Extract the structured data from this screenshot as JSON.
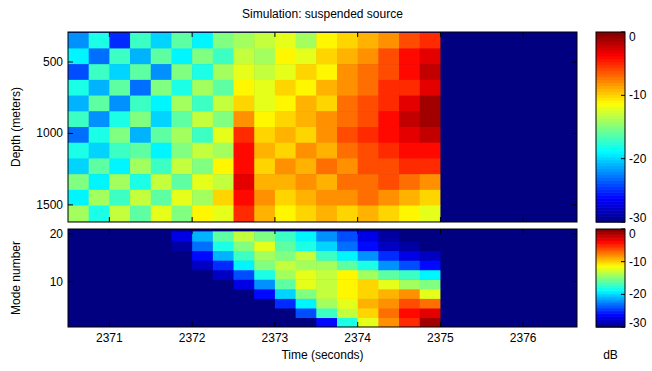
{
  "chart_data": [
    {
      "type": "heatmap",
      "title": "Simulation:  suspended source",
      "ylabel": "Depth (meters)",
      "x": [
        2370.625,
        2370.875,
        2371.125,
        2371.375,
        2371.625,
        2371.875,
        2372.125,
        2372.375,
        2372.625,
        2372.875,
        2373.125,
        2373.375,
        2373.625,
        2373.875,
        2374.125,
        2374.375,
        2374.625,
        2374.875,
        2375.125,
        2375.375,
        2375.625,
        2375.875,
        2376.125,
        2376.375
      ],
      "y": [
        350,
        460,
        570,
        680,
        790,
        900,
        1010,
        1120,
        1230,
        1340,
        1450,
        1560
      ],
      "cells": [
        [
          -22,
          -18,
          -25,
          -17,
          -20,
          -16,
          -19,
          -15,
          -14,
          -13,
          -12,
          -14,
          -11,
          -10,
          -9,
          -8,
          -6,
          -5,
          -30,
          -30,
          -30,
          -30,
          -30,
          -30
        ],
        [
          -19,
          -23,
          -17,
          -21,
          -16,
          -19,
          -15,
          -17,
          -13,
          -14,
          -11,
          -12,
          -10,
          -9,
          -8,
          -6,
          -4,
          -3,
          -30,
          -30,
          -30,
          -30,
          -30,
          -30
        ],
        [
          -24,
          -17,
          -20,
          -16,
          -22,
          -15,
          -18,
          -14,
          -12,
          -13,
          -12,
          -10,
          -11,
          -8,
          -7,
          -6,
          -4,
          -2,
          -30,
          -30,
          -30,
          -30,
          -30,
          -30
        ],
        [
          -18,
          -21,
          -16,
          -23,
          -15,
          -18,
          -14,
          -16,
          -11,
          -12,
          -10,
          -11,
          -9,
          -8,
          -7,
          -5,
          -5,
          -3,
          -30,
          -30,
          -30,
          -30,
          -30,
          -30
        ],
        [
          -21,
          -16,
          -22,
          -17,
          -19,
          -14,
          -17,
          -13,
          -10,
          -12,
          -11,
          -9,
          -10,
          -7,
          -6,
          -5,
          -3,
          -1,
          -30,
          -30,
          -30,
          -30,
          -30,
          -30
        ],
        [
          -17,
          -22,
          -18,
          -15,
          -20,
          -16,
          -13,
          -15,
          -8,
          -11,
          -10,
          -9,
          -8,
          -7,
          -6,
          -4,
          -2,
          -1,
          -30,
          -30,
          -30,
          -30,
          -30,
          -30
        ],
        [
          -23,
          -18,
          -15,
          -21,
          -16,
          -14,
          -17,
          -12,
          -5,
          -10,
          -9,
          -10,
          -8,
          -6,
          -5,
          -4,
          -3,
          -2,
          -30,
          -30,
          -30,
          -30,
          -30,
          -30
        ],
        [
          -18,
          -20,
          -17,
          -16,
          -19,
          -15,
          -13,
          -14,
          -4,
          -9,
          -10,
          -8,
          -9,
          -7,
          -6,
          -5,
          -4,
          -4,
          -30,
          -30,
          -30,
          -30,
          -30,
          -30
        ],
        [
          -20,
          -16,
          -19,
          -14,
          -17,
          -13,
          -15,
          -11,
          -4,
          -10,
          -8,
          -9,
          -7,
          -8,
          -6,
          -6,
          -5,
          -5,
          -30,
          -30,
          -30,
          -30,
          -30,
          -30
        ],
        [
          -15,
          -19,
          -14,
          -18,
          -13,
          -16,
          -12,
          -13,
          -3,
          -9,
          -9,
          -8,
          -9,
          -7,
          -7,
          -6,
          -7,
          -8,
          -30,
          -30,
          -30,
          -30,
          -30,
          -30
        ],
        [
          -19,
          -14,
          -17,
          -13,
          -16,
          -12,
          -14,
          -10,
          -4,
          -8,
          -10,
          -9,
          -8,
          -8,
          -7,
          -8,
          -9,
          -10,
          -30,
          -30,
          -30,
          -30,
          -30,
          -30
        ],
        [
          -14,
          -18,
          -13,
          -16,
          -12,
          -15,
          -11,
          -12,
          -5,
          -9,
          -11,
          -10,
          -9,
          -10,
          -9,
          -10,
          -11,
          -12,
          -30,
          -30,
          -30,
          -30,
          -30,
          -30
        ]
      ],
      "xlim": [
        2370.5,
        2376.65
      ],
      "ylim": [
        1620,
        290
      ],
      "xticks": [
        2371,
        2372,
        2373,
        2374,
        2375,
        2376
      ],
      "yticks": [
        500,
        1000,
        1500
      ],
      "tick_labels": "y",
      "grid": false,
      "colorbar": {
        "range": [
          -30,
          0
        ],
        "ticks": [
          0,
          -10,
          -20,
          -30
        ]
      }
    },
    {
      "type": "heatmap",
      "xlabel": "Time (seconds)",
      "ylabel": "Mode number",
      "x": [
        2370.625,
        2370.875,
        2371.125,
        2371.375,
        2371.625,
        2371.875,
        2372.125,
        2372.375,
        2372.625,
        2372.875,
        2373.125,
        2373.375,
        2373.625,
        2373.875,
        2374.125,
        2374.375,
        2374.625,
        2374.875,
        2375.125,
        2375.375,
        2375.625,
        2375.875,
        2376.125,
        2376.375
      ],
      "y": [
        1.5,
        3.5,
        5.5,
        7.5,
        9.5,
        11.5,
        13.5,
        15.5,
        17.5,
        19.5
      ],
      "cells": [
        [
          -30,
          -30,
          -30,
          -30,
          -30,
          -30,
          -30,
          -30,
          -30,
          -30,
          -30,
          -30,
          -26,
          -18,
          -12,
          -8,
          -5,
          -1,
          -30,
          -30,
          -30,
          -30,
          -30,
          -30
        ],
        [
          -30,
          -30,
          -30,
          -30,
          -30,
          -30,
          -30,
          -30,
          -30,
          -30,
          -30,
          -24,
          -17,
          -13,
          -10,
          -7,
          -4,
          -3,
          -30,
          -30,
          -30,
          -30,
          -30,
          -30
        ],
        [
          -30,
          -30,
          -30,
          -30,
          -30,
          -30,
          -30,
          -30,
          -30,
          -30,
          -25,
          -19,
          -14,
          -12,
          -9,
          -8,
          -6,
          -7,
          -30,
          -30,
          -30,
          -30,
          -30,
          -30
        ],
        [
          -30,
          -30,
          -30,
          -30,
          -30,
          -30,
          -30,
          -30,
          -30,
          -26,
          -20,
          -15,
          -13,
          -11,
          -10,
          -9,
          -8,
          -12,
          -30,
          -30,
          -30,
          -30,
          -30,
          -30
        ],
        [
          -30,
          -30,
          -30,
          -30,
          -30,
          -30,
          -30,
          -30,
          -27,
          -22,
          -16,
          -12,
          -13,
          -11,
          -10,
          -12,
          -14,
          -15,
          -30,
          -30,
          -30,
          -30,
          -30,
          -30
        ],
        [
          -30,
          -30,
          -30,
          -30,
          -30,
          -30,
          -30,
          -28,
          -24,
          -18,
          -14,
          -12,
          -13,
          -11,
          -14,
          -16,
          -17,
          -19,
          -30,
          -30,
          -30,
          -30,
          -30,
          -30
        ],
        [
          -30,
          -30,
          -30,
          -30,
          -30,
          -30,
          -28,
          -25,
          -19,
          -15,
          -13,
          -14,
          -14,
          -16,
          -18,
          -22,
          -24,
          -26,
          -30,
          -30,
          -30,
          -30,
          -30,
          -30
        ],
        [
          -30,
          -30,
          -30,
          -30,
          -30,
          -30,
          -26,
          -21,
          -17,
          -14,
          -15,
          -13,
          -17,
          -19,
          -22,
          -25,
          -27,
          -28,
          -30,
          -30,
          -30,
          -30,
          -30,
          -30
        ],
        [
          -30,
          -30,
          -30,
          -30,
          -30,
          -29,
          -23,
          -18,
          -15,
          -12,
          -16,
          -18,
          -20,
          -23,
          -26,
          -28,
          -29,
          -30,
          -30,
          -30,
          -30,
          -30,
          -30,
          -30
        ],
        [
          -30,
          -30,
          -30,
          -30,
          -30,
          -27,
          -21,
          -16,
          -13,
          -15,
          -17,
          -19,
          -22,
          -24,
          -27,
          -29,
          -30,
          -30,
          -30,
          -30,
          -30,
          -30,
          -30,
          -30
        ]
      ],
      "xlim": [
        2370.5,
        2376.65
      ],
      "ylim": [
        0.5,
        21
      ],
      "xticks": [
        2371,
        2372,
        2373,
        2374,
        2375,
        2376
      ],
      "yticks": [
        10,
        20
      ],
      "grid": false,
      "colorbar": {
        "range": [
          -30,
          0
        ],
        "ticks": [
          0,
          -10,
          -20,
          -30
        ],
        "label": "dB"
      }
    }
  ]
}
